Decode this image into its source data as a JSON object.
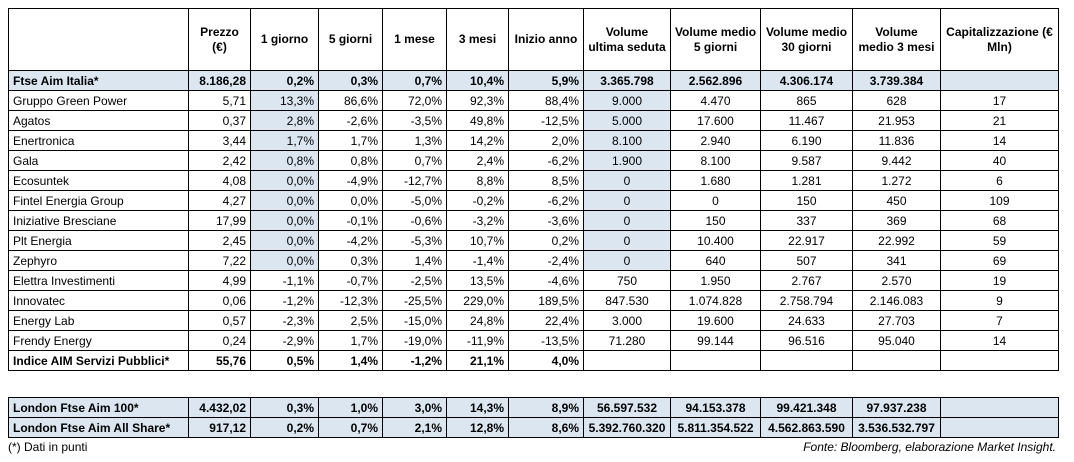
{
  "table": {
    "columns": [
      "Prezzo (€)",
      "1 giorno",
      "5 giorni",
      "1 mese",
      "3 mesi",
      "Inizio anno",
      "Volume ultima seduta",
      "Volume medio 5 giorni",
      "Volume medio 30 giorni",
      "Volume medio 3 mesi",
      "Capitalizzazione (€ Mln)"
    ],
    "index_row": [
      "Ftse Aim Italia*",
      "8.186,28",
      "0,2%",
      "0,3%",
      "0,7%",
      "10,4%",
      "5,9%",
      "3.365.798",
      "2.562.896",
      "4.306.174",
      "3.739.384"
    ],
    "rows": [
      [
        "Gruppo Green Power",
        "5,71",
        "13,3%",
        "86,6%",
        "72,0%",
        "92,3%",
        "88,4%",
        "9.000",
        "4.470",
        "865",
        "628",
        "17"
      ],
      [
        "Agatos",
        "0,37",
        "2,8%",
        "-2,6%",
        "-3,5%",
        "49,8%",
        "-12,5%",
        "5.000",
        "17.600",
        "11.467",
        "21.953",
        "21"
      ],
      [
        "Enertronica",
        "3,44",
        "1,7%",
        "1,7%",
        "1,3%",
        "14,2%",
        "2,0%",
        "8.100",
        "2.940",
        "6.190",
        "11.836",
        "14"
      ],
      [
        "Gala",
        "2,42",
        "0,8%",
        "0,8%",
        "0,7%",
        "2,4%",
        "-6,2%",
        "1.900",
        "8.100",
        "9.587",
        "9.442",
        "40"
      ],
      [
        "Ecosuntek",
        "4,08",
        "0,0%",
        "-4,9%",
        "-12,7%",
        "8,8%",
        "8,5%",
        "0",
        "1.680",
        "1.281",
        "1.272",
        "6"
      ],
      [
        "Fintel Energia Group",
        "4,27",
        "0,0%",
        "0,0%",
        "-5,0%",
        "-0,2%",
        "-6,2%",
        "0",
        "0",
        "150",
        "450",
        "109"
      ],
      [
        "Iniziative Bresciane",
        "17,99",
        "0,0%",
        "-0,1%",
        "-0,6%",
        "-3,2%",
        "-3,6%",
        "0",
        "150",
        "337",
        "369",
        "68"
      ],
      [
        "Plt Energia",
        "2,45",
        "0,0%",
        "-4,2%",
        "-5,3%",
        "10,7%",
        "0,2%",
        "0",
        "10.400",
        "22.917",
        "22.992",
        "59"
      ],
      [
        "Zephyro",
        "7,22",
        "0,0%",
        "0,3%",
        "1,4%",
        "-1,4%",
        "-2,4%",
        "0",
        "640",
        "507",
        "341",
        "69"
      ],
      [
        "Elettra Investimenti",
        "4,99",
        "-1,1%",
        "-0,7%",
        "-2,5%",
        "13,5%",
        "-4,6%",
        "750",
        "1.950",
        "2.767",
        "2.570",
        "19"
      ],
      [
        "Innovatec",
        "0,06",
        "-1,2%",
        "-12,3%",
        "-25,5%",
        "229,0%",
        "189,5%",
        "847.530",
        "1.074.828",
        "2.758.794",
        "2.146.083",
        "9"
      ],
      [
        "Energy Lab",
        "0,57",
        "-2,3%",
        "2,5%",
        "-15,0%",
        "24,8%",
        "22,4%",
        "3.000",
        "19.600",
        "24.633",
        "27.703",
        "7"
      ],
      [
        "Frendy Energy",
        "0,24",
        "-2,9%",
        "1,7%",
        "-19,0%",
        "-11,9%",
        "-13,5%",
        "71.280",
        "99.144",
        "96.516",
        "95.040",
        "14"
      ]
    ],
    "sector_row": [
      "Indice AIM Servizi Pubblici*",
      "55,76",
      "0,5%",
      "1,4%",
      "-1,2%",
      "21,1%",
      "4,0%"
    ],
    "london_rows": [
      [
        "London Ftse Aim 100*",
        "4.432,02",
        "0,3%",
        "1,0%",
        "3,0%",
        "14,3%",
        "8,9%",
        "56.597.532",
        "94.153.378",
        "99.421.348",
        "97.937.238"
      ],
      [
        "London Ftse Aim All Share*",
        "917,12",
        "0,2%",
        "0,7%",
        "2,1%",
        "12,8%",
        "8,6%",
        "5.392.760.320",
        "5.811.354.522",
        "4.562.863.590",
        "3.536.532.797"
      ]
    ]
  },
  "footer": {
    "note": "(*) Dati in punti",
    "source": "Fonte: Bloomberg, elaborazione Market Insight."
  }
}
